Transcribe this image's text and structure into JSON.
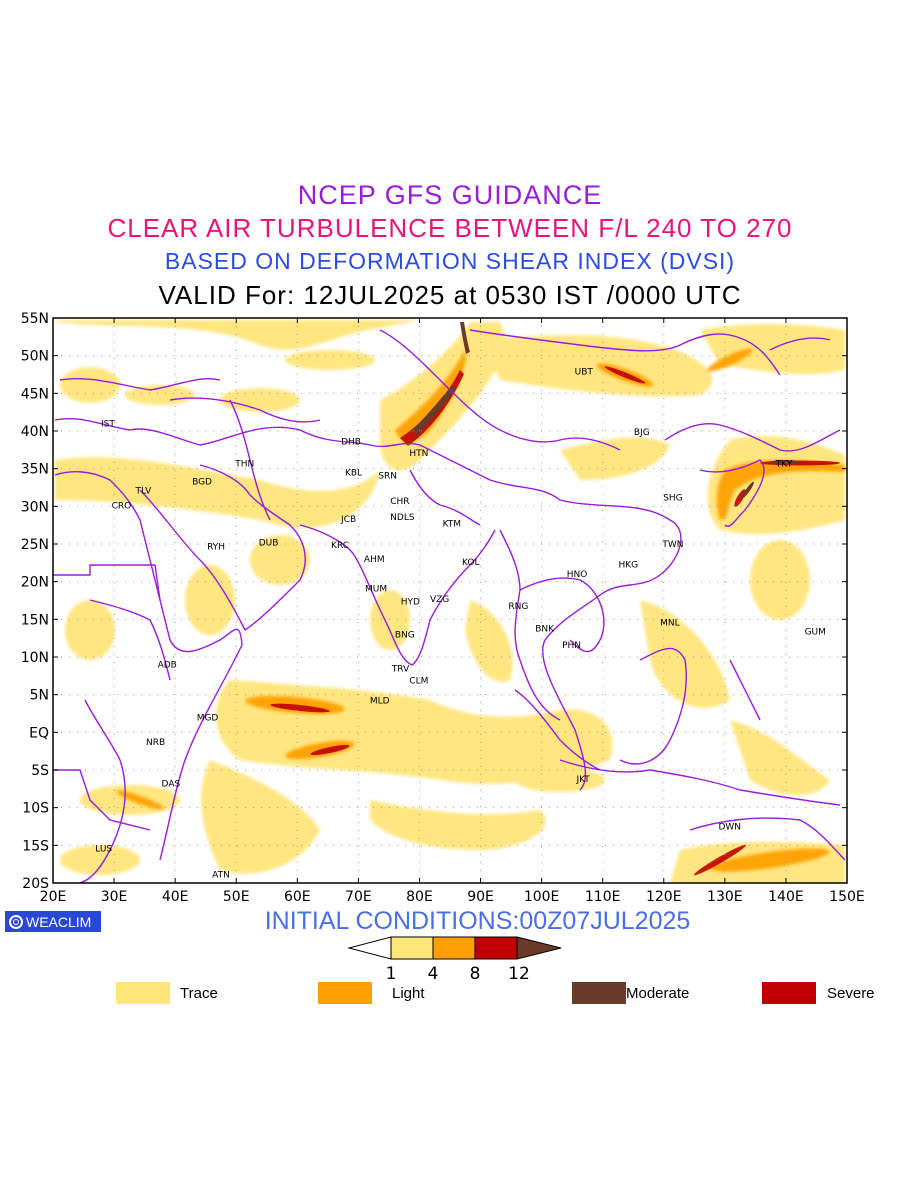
{
  "title": {
    "line1": "NCEP GFS GUIDANCE",
    "line2": "CLEAR AIR TURBULENCE BETWEEN F/L 240 TO 270",
    "line3": "BASED ON DEFORMATION SHEAR INDEX (DVSI)",
    "line4": "VALID For: 12JUL2025 at 0530 IST /0000 UTC"
  },
  "initial_conditions": "INITIAL CONDITIONS:00Z07JUL2025",
  "badge": {
    "text": "WEACLIM",
    "icon": "circle-logo-icon"
  },
  "axes": {
    "lat_labels": [
      "55N",
      "50N",
      "45N",
      "40N",
      "35N",
      "30N",
      "25N",
      "20N",
      "15N",
      "10N",
      "5N",
      "EQ",
      "5S",
      "10S",
      "15S",
      "20S"
    ],
    "lon_labels": [
      "20E",
      "30E",
      "40E",
      "50E",
      "60E",
      "70E",
      "80E",
      "90E",
      "100E",
      "110E",
      "120E",
      "130E",
      "140E",
      "150E"
    ],
    "lat_range": [
      -20,
      55
    ],
    "lon_range": [
      20,
      150
    ]
  },
  "colorbar": {
    "ticks": [
      "1",
      "4",
      "8",
      "12"
    ],
    "colors": [
      "#ffe57a",
      "#ffa000",
      "#c00000",
      "#6a3a2a"
    ]
  },
  "legend": [
    {
      "label": "Trace",
      "color": "#ffe57a"
    },
    {
      "label": "Light",
      "color": "#ffa000"
    },
    {
      "label": "Moderate",
      "color": "#6a3a2a"
    },
    {
      "label": "Severe",
      "color": "#c00000"
    }
  ],
  "colors": {
    "border": "#9a1bd8",
    "trace": "#ffe57a",
    "light": "#ffa000",
    "moderate": "#6a3a2a",
    "severe": "#c00000"
  },
  "cities": [
    {
      "code": "IST",
      "lon": 29.0,
      "lat": 41.0
    },
    {
      "code": "TLV",
      "lon": 34.8,
      "lat": 32.1
    },
    {
      "code": "CRO",
      "lon": 31.2,
      "lat": 30.1
    },
    {
      "code": "BGD",
      "lon": 44.4,
      "lat": 33.3
    },
    {
      "code": "THN",
      "lon": 51.4,
      "lat": 35.7
    },
    {
      "code": "RYH",
      "lon": 46.7,
      "lat": 24.7
    },
    {
      "code": "DUB",
      "lon": 55.3,
      "lat": 25.2
    },
    {
      "code": "DHB",
      "lon": 68.8,
      "lat": 38.6
    },
    {
      "code": "KBL",
      "lon": 69.2,
      "lat": 34.5
    },
    {
      "code": "SRN",
      "lon": 74.8,
      "lat": 34.1
    },
    {
      "code": "HTN",
      "lon": 79.9,
      "lat": 37.1
    },
    {
      "code": "CHR",
      "lon": 76.8,
      "lat": 30.7
    },
    {
      "code": "JCB",
      "lon": 68.4,
      "lat": 28.3
    },
    {
      "code": "NDLS",
      "lon": 77.2,
      "lat": 28.6
    },
    {
      "code": "KTM",
      "lon": 85.3,
      "lat": 27.7
    },
    {
      "code": "KRC",
      "lon": 67.0,
      "lat": 24.9
    },
    {
      "code": "AHM",
      "lon": 72.6,
      "lat": 23.0
    },
    {
      "code": "KOL",
      "lon": 88.4,
      "lat": 22.6
    },
    {
      "code": "MUM",
      "lon": 72.9,
      "lat": 19.1
    },
    {
      "code": "HYD",
      "lon": 78.5,
      "lat": 17.4
    },
    {
      "code": "VZG",
      "lon": 83.3,
      "lat": 17.7
    },
    {
      "code": "BNG",
      "lon": 77.6,
      "lat": 13.0
    },
    {
      "code": "TRV",
      "lon": 76.9,
      "lat": 8.5
    },
    {
      "code": "CLM",
      "lon": 79.9,
      "lat": 6.9
    },
    {
      "code": "MLD",
      "lon": 73.5,
      "lat": 4.2
    },
    {
      "code": "RNG",
      "lon": 96.2,
      "lat": 16.8
    },
    {
      "code": "BNK",
      "lon": 100.5,
      "lat": 13.8
    },
    {
      "code": "PHN",
      "lon": 104.9,
      "lat": 11.6
    },
    {
      "code": "HNO",
      "lon": 105.8,
      "lat": 21.0
    },
    {
      "code": "HKG",
      "lon": 114.2,
      "lat": 22.3
    },
    {
      "code": "TWN",
      "lon": 121.5,
      "lat": 25.0
    },
    {
      "code": "SHG",
      "lon": 121.5,
      "lat": 31.2
    },
    {
      "code": "BJG",
      "lon": 116.4,
      "lat": 39.9
    },
    {
      "code": "UBT",
      "lon": 106.9,
      "lat": 47.9
    },
    {
      "code": "TKY",
      "lon": 139.7,
      "lat": 35.7
    },
    {
      "code": "MNL",
      "lon": 121.0,
      "lat": 14.6
    },
    {
      "code": "GUM",
      "lon": 144.8,
      "lat": 13.4
    },
    {
      "code": "JKT",
      "lon": 106.8,
      "lat": -6.2
    },
    {
      "code": "DWN",
      "lon": 130.8,
      "lat": -12.5
    },
    {
      "code": "ADB",
      "lon": 38.7,
      "lat": 9.0
    },
    {
      "code": "MGD",
      "lon": 45.3,
      "lat": 2.0
    },
    {
      "code": "NRB",
      "lon": 36.8,
      "lat": -1.3
    },
    {
      "code": "DAS",
      "lon": 39.3,
      "lat": -6.8
    },
    {
      "code": "LUS",
      "lon": 28.3,
      "lat": -15.4
    },
    {
      "code": "ATN",
      "lon": 47.5,
      "lat": -18.9
    }
  ]
}
